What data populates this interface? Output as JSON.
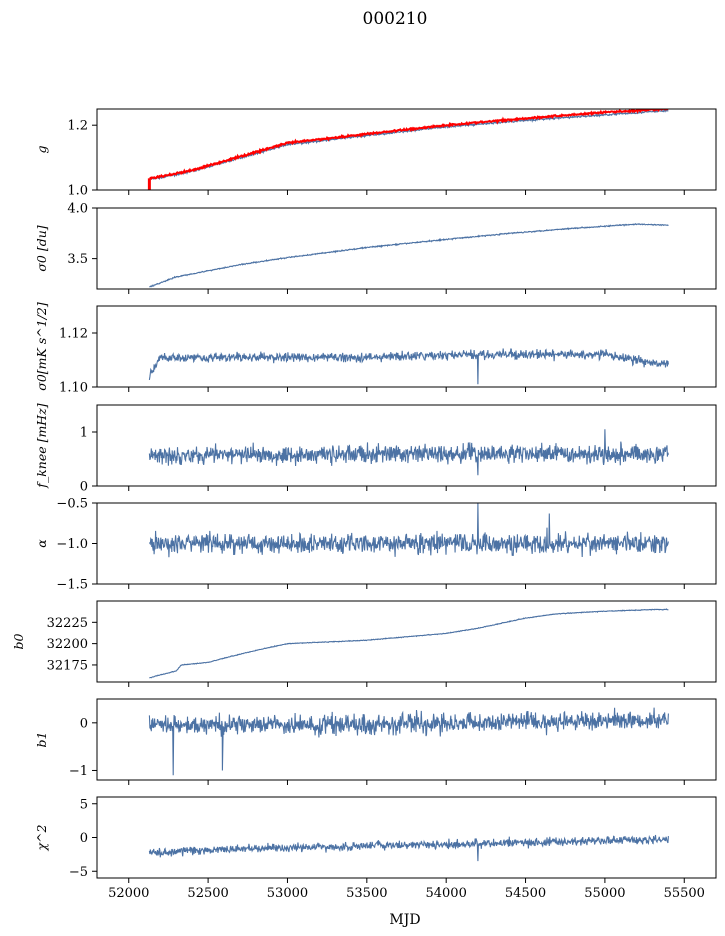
{
  "title": "000210",
  "colors": {
    "series": "#4c72a4",
    "overlay": "#ff0000",
    "axis": "#000000"
  },
  "x_axis": {
    "label": "MJD",
    "range": [
      51800,
      55700
    ],
    "ticks": [
      52000,
      52500,
      53000,
      53500,
      54000,
      54500,
      55000,
      55500
    ],
    "tick_labels": [
      "52000",
      "52500",
      "53000",
      "53500",
      "54000",
      "54500",
      "55000",
      "55500"
    ]
  },
  "chart_data": [
    {
      "type": "line",
      "ylabel": "g",
      "ylim": [
        1.0,
        1.25
      ],
      "yticks": [
        1.0,
        1.2
      ],
      "ytick_labels": [
        "1.0",
        "1.2"
      ],
      "x": [
        52130,
        52200,
        52400,
        52700,
        53000,
        53500,
        54000,
        54500,
        55000,
        55400
      ],
      "series": [
        {
          "values": [
            1.033,
            1.038,
            1.058,
            1.099,
            1.14,
            1.168,
            1.195,
            1.215,
            1.232,
            1.245
          ]
        },
        {
          "values": [
            1.036,
            1.041,
            1.061,
            1.103,
            1.145,
            1.173,
            1.2,
            1.221,
            1.24,
            1.25
          ]
        }
      ],
      "noise": 0.002,
      "spikes": [],
      "has_overlay": true
    },
    {
      "type": "line",
      "ylabel": "σ0 [du]",
      "ylim": [
        3.2,
        4.0
      ],
      "yticks": [
        3.5,
        4.0
      ],
      "ytick_labels": [
        "3.5",
        "4.0"
      ],
      "x": [
        52130,
        52300,
        52500,
        52700,
        53000,
        53500,
        54000,
        54400,
        54800,
        55200,
        55400
      ],
      "series": [
        {
          "values": [
            3.22,
            3.32,
            3.38,
            3.44,
            3.51,
            3.61,
            3.69,
            3.75,
            3.8,
            3.84,
            3.83
          ]
        }
      ],
      "noise": 0.004,
      "spikes": [],
      "has_overlay": false
    },
    {
      "type": "line",
      "ylabel": "σ0[mK s^1/2]",
      "ylim": [
        1.1,
        1.13
      ],
      "yticks": [
        1.1,
        1.12
      ],
      "ytick_labels": [
        "1.10",
        "1.12"
      ],
      "x": [
        52130,
        52200,
        52800,
        53500,
        54200,
        55000,
        55400
      ],
      "series": [
        {
          "values": [
            1.104,
            1.111,
            1.111,
            1.111,
            1.112,
            1.112,
            1.108
          ]
        }
      ],
      "noise": 0.0012,
      "spikes": [
        [
          54200,
          1.101
        ]
      ],
      "has_overlay": false
    },
    {
      "type": "line",
      "ylabel": "f_knee [mHz]",
      "ylim": [
        0.0,
        1.5
      ],
      "yticks": [
        0,
        1
      ],
      "ytick_labels": [
        "0",
        "1"
      ],
      "x": [
        52130,
        53000,
        54000,
        55000,
        55400
      ],
      "series": [
        {
          "values": [
            0.58,
            0.58,
            0.6,
            0.6,
            0.6
          ]
        }
      ],
      "noise": 0.12,
      "spikes": [
        [
          54200,
          0.2
        ],
        [
          55000,
          1.05
        ]
      ],
      "has_overlay": false
    },
    {
      "type": "line",
      "ylabel": "α",
      "ylim": [
        -1.5,
        -0.5
      ],
      "yticks": [
        -1.5,
        -1.0,
        -0.5
      ],
      "ytick_labels": [
        "−1.5",
        "−1.0",
        "−0.5"
      ],
      "x": [
        52130,
        53000,
        54000,
        55000,
        55400
      ],
      "series": [
        {
          "values": [
            -1.0,
            -1.0,
            -1.0,
            -1.0,
            -1.0
          ]
        }
      ],
      "noise": 0.09,
      "spikes": [
        [
          54200,
          -0.5
        ],
        [
          54650,
          -0.63
        ]
      ],
      "has_overlay": false
    },
    {
      "type": "line",
      "ylabel": "b0",
      "ylim": [
        32155,
        32250
      ],
      "yticks": [
        32175,
        32200,
        32225
      ],
      "ytick_labels": [
        "32175",
        "32200",
        "32225"
      ],
      "x": [
        52130,
        52300,
        52330,
        52500,
        52600,
        52800,
        53000,
        53500,
        54000,
        54200,
        54500,
        54700,
        55000,
        55300,
        55400
      ],
      "series": [
        {
          "values": [
            32160,
            32168,
            32175,
            32178,
            32183,
            32192,
            32200,
            32204,
            32212,
            32218,
            32230,
            32235,
            32238,
            32240,
            32240
          ]
        }
      ],
      "noise": 0.3,
      "spikes": [],
      "has_overlay": false
    },
    {
      "type": "line",
      "ylabel": "b1",
      "ylim": [
        -1.2,
        0.5
      ],
      "yticks": [
        -1,
        0
      ],
      "ytick_labels": [
        "−1",
        "0"
      ],
      "x": [
        52130,
        53000,
        54000,
        55000,
        55400
      ],
      "series": [
        {
          "values": [
            -0.05,
            -0.05,
            0.0,
            0.05,
            0.05
          ]
        }
      ],
      "noise": 0.14,
      "spikes": [
        [
          52280,
          -1.1
        ],
        [
          52590,
          -1.0
        ]
      ],
      "has_overlay": false
    },
    {
      "type": "line",
      "ylabel": "χ^2",
      "ylim": [
        -6,
        6
      ],
      "yticks": [
        -5,
        0,
        5
      ],
      "ytick_labels": [
        "−5",
        "0",
        "5"
      ],
      "x": [
        52130,
        52300,
        53000,
        54000,
        55000,
        55400
      ],
      "series": [
        {
          "values": [
            -2.3,
            -2.0,
            -1.5,
            -1.0,
            -0.5,
            -0.3
          ]
        }
      ],
      "noise": 0.45,
      "spikes": [
        [
          54200,
          -3.5
        ]
      ],
      "has_overlay": false
    }
  ]
}
